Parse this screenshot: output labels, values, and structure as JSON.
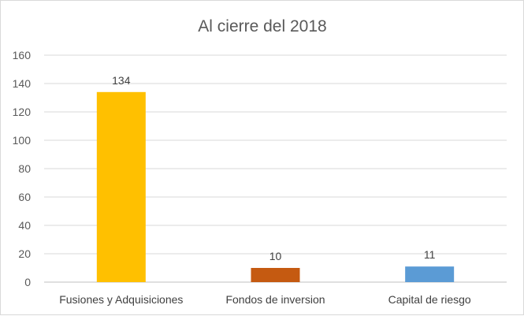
{
  "chart_data": {
    "type": "bar",
    "title": "Al cierre del 2018",
    "categories": [
      "Fusiones y Adquisiciones",
      "Fondos de inversion",
      "Capital de riesgo"
    ],
    "values": [
      134,
      10,
      11
    ],
    "data_labels": [
      "134",
      "10",
      "11"
    ],
    "colors": [
      "#FFC000",
      "#C55A11",
      "#5B9BD5"
    ],
    "ylim": [
      0,
      160
    ],
    "yticks": [
      0,
      20,
      40,
      60,
      80,
      100,
      120,
      140,
      160
    ],
    "ytick_labels": [
      "0",
      "20",
      "40",
      "60",
      "80",
      "100",
      "120",
      "140",
      "160"
    ],
    "grid": true,
    "legend": "none"
  }
}
